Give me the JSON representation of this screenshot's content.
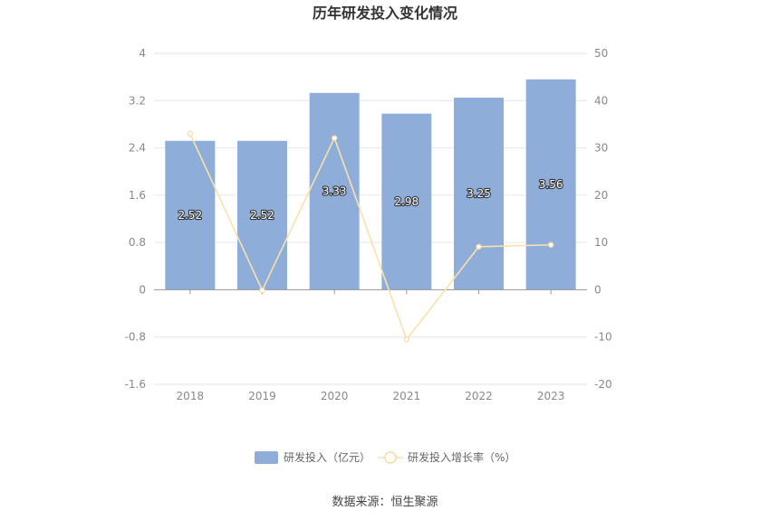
{
  "chart_data": {
    "type": "bar",
    "title": "历年研发投入变化情况",
    "categories": [
      "2018",
      "2019",
      "2020",
      "2021",
      "2022",
      "2023"
    ],
    "series": [
      {
        "name": "研发投入（亿元）",
        "type": "bar",
        "axis": "left",
        "values": [
          2.52,
          2.52,
          3.33,
          2.98,
          3.25,
          3.56
        ],
        "labels": [
          "2.52",
          "2.52",
          "3.33",
          "2.98",
          "3.25",
          "3.56"
        ],
        "color": "#8eadd9"
      },
      {
        "name": "研发投入增长率（%）",
        "type": "line",
        "axis": "right",
        "values": [
          33.0,
          -0.1,
          32.1,
          -10.5,
          9.1,
          9.5
        ],
        "color": "#fbe0ab"
      }
    ],
    "y_left": {
      "min": -1.6,
      "max": 4,
      "ticks": [
        "-1.6",
        "-0.8",
        "0",
        "0.8",
        "1.6",
        "2.4",
        "3.2",
        "4"
      ]
    },
    "y_right": {
      "min": -20,
      "max": 50,
      "ticks": [
        "-20",
        "-10",
        "0",
        "10",
        "20",
        "30",
        "40",
        "50"
      ]
    },
    "grid": true,
    "legend_position": "bottom"
  },
  "source": "数据来源：恒生聚源"
}
